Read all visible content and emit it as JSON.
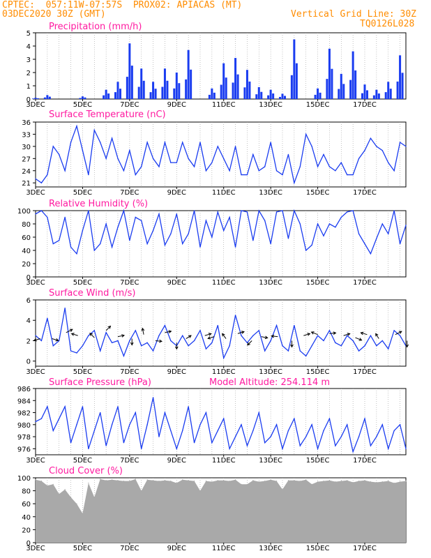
{
  "header": {
    "left_line1": "CPTEC:  057:11W-07:57S  PROX02: APIACAS (MT)",
    "left_line2": "03DEC2020 30Z (GMT)",
    "right_line2": "Vertical Grid Line: 30Z",
    "right_line3": "TQ0126L028"
  },
  "colors": {
    "series": "#1a3cf0",
    "cloud": "#a9a9a9",
    "title": "#ff1aa0",
    "header": "#ff8c00",
    "arrow": "#000000"
  },
  "chart_data": [
    {
      "type": "bar",
      "title": "Precipitation (mm/h)",
      "x_categories": [
        "3DEC",
        "5DEC",
        "7DEC",
        "9DEC",
        "11DEC",
        "13DEC",
        "15DEC",
        "17DEC"
      ],
      "ylim": [
        0,
        5
      ],
      "yticks": [
        0,
        1,
        2,
        3,
        4,
        5
      ],
      "x_days": [
        0,
        0.5,
        1,
        1.5,
        2,
        2.5,
        3,
        3.5,
        4,
        4.5,
        5,
        5.5,
        6,
        6.5,
        7,
        7.5,
        8,
        8.5,
        9,
        9.5,
        10,
        10.5,
        11,
        11.5,
        12,
        12.5,
        13,
        13.5,
        14,
        14.5,
        15,
        15.5
      ],
      "values": [
        0.1,
        0.3,
        0,
        0,
        0.2,
        0,
        0.7,
        1.3,
        4.2,
        2.3,
        1.3,
        2.3,
        2.0,
        3.7,
        0,
        0.8,
        2.7,
        3.1,
        2.2,
        0.9,
        0.7,
        0.4,
        4.5,
        0,
        0.8,
        3.8,
        1.9,
        3.6,
        1.1,
        0.7,
        1.3,
        3.3
      ]
    },
    {
      "type": "line",
      "title": "Surface Temperature (nC)",
      "x_categories": [
        "3DEC",
        "5DEC",
        "7DEC",
        "9DEC",
        "11DEC",
        "13DEC",
        "15DEC",
        "17DEC"
      ],
      "ylim": [
        20,
        36
      ],
      "yticks": [
        21,
        24,
        27,
        30,
        33,
        36
      ],
      "x_days": [
        0,
        0.25,
        0.5,
        0.75,
        1,
        1.25,
        1.5,
        1.75,
        2,
        2.25,
        2.5,
        2.75,
        3,
        3.25,
        3.5,
        3.75,
        4,
        4.25,
        4.5,
        4.75,
        5,
        5.25,
        5.5,
        5.75,
        6,
        6.25,
        6.5,
        6.75,
        7,
        7.25,
        7.5,
        7.75,
        8,
        8.25,
        8.5,
        8.75,
        9,
        9.25,
        9.5,
        9.75,
        10,
        10.25,
        10.5,
        10.75,
        11,
        11.25,
        11.5,
        11.75,
        12,
        12.25,
        12.5,
        12.75,
        13,
        13.25,
        13.5,
        13.75,
        14,
        14.25,
        14.5,
        14.75,
        15,
        15.25,
        15.5,
        15.75
      ],
      "values": [
        22,
        21,
        23,
        30,
        28,
        24,
        31,
        35,
        29,
        23,
        34,
        31,
        27,
        32,
        27,
        24,
        29,
        23,
        25,
        31,
        27,
        25,
        31,
        26,
        26,
        31,
        27,
        25,
        31,
        24,
        26,
        30,
        27,
        24,
        30,
        23,
        23,
        28,
        24,
        25,
        31,
        24,
        23,
        28,
        21,
        25,
        33,
        30,
        25,
        28,
        25,
        24,
        26,
        23,
        23,
        27,
        29,
        32,
        30,
        29,
        26,
        24,
        31,
        30
      ]
    },
    {
      "type": "line",
      "title": "Relative Humidity (%)",
      "x_categories": [
        "3DEC",
        "5DEC",
        "7DEC",
        "9DEC",
        "11DEC",
        "13DEC",
        "15DEC",
        "17DEC"
      ],
      "ylim": [
        0,
        100
      ],
      "yticks": [
        0,
        20,
        40,
        60,
        80,
        100
      ],
      "x_days": [
        0,
        0.25,
        0.5,
        0.75,
        1,
        1.25,
        1.5,
        1.75,
        2,
        2.25,
        2.5,
        2.75,
        3,
        3.25,
        3.5,
        3.75,
        4,
        4.25,
        4.5,
        4.75,
        5,
        5.25,
        5.5,
        5.75,
        6,
        6.25,
        6.5,
        6.75,
        7,
        7.25,
        7.5,
        7.75,
        8,
        8.25,
        8.5,
        8.75,
        9,
        9.25,
        9.5,
        9.75,
        10,
        10.25,
        10.5,
        10.75,
        11,
        11.25,
        11.5,
        11.75,
        12,
        12.25,
        12.5,
        12.75,
        13,
        13.25,
        13.5,
        13.75,
        14,
        14.25,
        14.5,
        14.75,
        15,
        15.25,
        15.5,
        15.75
      ],
      "values": [
        95,
        100,
        90,
        50,
        55,
        90,
        45,
        35,
        70,
        100,
        40,
        50,
        80,
        45,
        75,
        100,
        55,
        90,
        85,
        50,
        70,
        95,
        48,
        65,
        95,
        50,
        65,
        100,
        45,
        85,
        60,
        98,
        70,
        90,
        45,
        100,
        98,
        55,
        100,
        85,
        50,
        98,
        100,
        58,
        100,
        80,
        40,
        48,
        80,
        62,
        80,
        75,
        90,
        98,
        100,
        65,
        50,
        35,
        58,
        80,
        65,
        100,
        50,
        78
      ]
    },
    {
      "type": "line",
      "title": "Surface Wind (m/s)",
      "x_categories": [
        "3DEC",
        "5DEC",
        "7DEC",
        "9DEC",
        "11DEC",
        "13DEC",
        "15DEC",
        "17DEC"
      ],
      "ylim": [
        -0.5,
        6
      ],
      "yticks": [
        0,
        2,
        4,
        6
      ],
      "x_days": [
        0,
        0.25,
        0.5,
        0.75,
        1,
        1.25,
        1.5,
        1.75,
        2,
        2.25,
        2.5,
        2.75,
        3,
        3.25,
        3.5,
        3.75,
        4,
        4.25,
        4.5,
        4.75,
        5,
        5.25,
        5.5,
        5.75,
        6,
        6.25,
        6.5,
        6.75,
        7,
        7.25,
        7.5,
        7.75,
        8,
        8.25,
        8.5,
        8.75,
        9,
        9.25,
        9.5,
        9.75,
        10,
        10.25,
        10.5,
        10.75,
        11,
        11.25,
        11.5,
        11.75,
        12,
        12.25,
        12.5,
        12.75,
        13,
        13.25,
        13.5,
        13.75,
        14,
        14.25,
        14.5,
        14.75,
        15,
        15.25,
        15.5,
        15.75
      ],
      "values": [
        2.5,
        2.0,
        4.2,
        1.5,
        2.0,
        5.2,
        1.0,
        0.8,
        1.5,
        2.5,
        3.0,
        1.0,
        2.8,
        1.8,
        2.0,
        0.5,
        2.0,
        3.0,
        1.5,
        1.8,
        1.0,
        2.5,
        3.5,
        2.0,
        1.5,
        2.5,
        1.5,
        2.0,
        3.0,
        1.2,
        1.8,
        3.5,
        0.3,
        1.5,
        4.5,
        2.5,
        1.8,
        2.5,
        3.0,
        1.0,
        2.0,
        3.5,
        1.5,
        1.0,
        3.5,
        1.0,
        0.5,
        1.5,
        2.5,
        2.0,
        3.0,
        1.8,
        1.5,
        2.5,
        2.0,
        1.0,
        1.5,
        2.5,
        1.5,
        2.0,
        1.2,
        3.0,
        2.5,
        1.5
      ],
      "arrows": [
        {
          "x": 0.2,
          "y": 2.2,
          "u": -1,
          "v": -0.3
        },
        {
          "x": 0.7,
          "y": 2.2,
          "u": 1,
          "v": -0.3
        },
        {
          "x": 1.3,
          "y": 2.8,
          "u": 1,
          "v": 0.5
        },
        {
          "x": 1.8,
          "y": 2.5,
          "u": -1,
          "v": 0.3
        },
        {
          "x": 2.5,
          "y": 2.3,
          "u": -0.7,
          "v": 0.7
        },
        {
          "x": 3.0,
          "y": 3.0,
          "u": 0.7,
          "v": 0.7
        },
        {
          "x": 3.5,
          "y": 2.4,
          "u": 1,
          "v": 0.2
        },
        {
          "x": 4.1,
          "y": 2.2,
          "u": 0,
          "v": -1
        },
        {
          "x": 4.6,
          "y": 2.6,
          "u": -0.2,
          "v": 1
        },
        {
          "x": 5.1,
          "y": 2.0,
          "u": 1,
          "v": -0.1
        },
        {
          "x": 5.5,
          "y": 2.8,
          "u": 1,
          "v": 0.2
        },
        {
          "x": 6.0,
          "y": 1.8,
          "u": 0,
          "v": -1
        },
        {
          "x": 6.4,
          "y": 2.2,
          "u": 0.8,
          "v": 0.5
        },
        {
          "x": 7.2,
          "y": 2.5,
          "u": 1,
          "v": 0.3
        },
        {
          "x": 7.6,
          "y": 2.4,
          "u": -1,
          "v": -0.3
        },
        {
          "x": 8.1,
          "y": 2.2,
          "u": -0.6,
          "v": 0.8
        },
        {
          "x": 8.6,
          "y": 2.7,
          "u": 1,
          "v": 0.3
        },
        {
          "x": 9.2,
          "y": 2.0,
          "u": -0.7,
          "v": -0.7
        },
        {
          "x": 9.6,
          "y": 2.4,
          "u": 1,
          "v": -0.2
        },
        {
          "x": 10.3,
          "y": 2.4,
          "u": -1,
          "v": 0.1
        },
        {
          "x": 10.9,
          "y": 2.0,
          "u": 0,
          "v": -1
        },
        {
          "x": 11.4,
          "y": 2.5,
          "u": 1,
          "v": 0.3
        },
        {
          "x": 12.0,
          "y": 2.6,
          "u": -1,
          "v": 0.4
        },
        {
          "x": 12.5,
          "y": 2.7,
          "u": 1,
          "v": 0.1
        },
        {
          "x": 13.1,
          "y": 2.5,
          "u": 1,
          "v": 0.3
        },
        {
          "x": 13.6,
          "y": 2.3,
          "u": 1,
          "v": -0.4
        },
        {
          "x": 14.1,
          "y": 2.6,
          "u": -1,
          "v": 0.3
        },
        {
          "x": 14.6,
          "y": 2.2,
          "u": -0.5,
          "v": 0.8
        },
        {
          "x": 15.3,
          "y": 2.6,
          "u": 1,
          "v": 0.5
        },
        {
          "x": 15.8,
          "y": 2.0,
          "u": 0,
          "v": -1
        }
      ]
    },
    {
      "type": "line",
      "title": "Surface Pressure (hPa)",
      "annotation": "Model Altitude: 254.114 m",
      "x_categories": [
        "3DEC",
        "5DEC",
        "7DEC",
        "9DEC",
        "11DEC",
        "13DEC",
        "15DEC",
        "17DEC"
      ],
      "ylim": [
        975,
        986
      ],
      "yticks": [
        976,
        978,
        980,
        982,
        984,
        986
      ],
      "x_days": [
        0,
        0.25,
        0.5,
        0.75,
        1,
        1.25,
        1.5,
        1.75,
        2,
        2.25,
        2.5,
        2.75,
        3,
        3.25,
        3.5,
        3.75,
        4,
        4.25,
        4.5,
        4.75,
        5,
        5.25,
        5.5,
        5.75,
        6,
        6.25,
        6.5,
        6.75,
        7,
        7.25,
        7.5,
        7.75,
        8,
        8.25,
        8.5,
        8.75,
        9,
        9.25,
        9.5,
        9.75,
        10,
        10.25,
        10.5,
        10.75,
        11,
        11.25,
        11.5,
        11.75,
        12,
        12.25,
        12.5,
        12.75,
        13,
        13.25,
        13.5,
        13.75,
        14,
        14.25,
        14.5,
        14.75,
        15,
        15.25,
        15.5,
        15.75
      ],
      "values": [
        980.5,
        981,
        983,
        979,
        981,
        983,
        977,
        980,
        983,
        976,
        979,
        982,
        976.5,
        980,
        983,
        977,
        980,
        982,
        976,
        980,
        984.5,
        978,
        982,
        979,
        976,
        979,
        983,
        977,
        980,
        982,
        977,
        979,
        981,
        976,
        978,
        980,
        976.5,
        979,
        982,
        977,
        978,
        980,
        976,
        979,
        981,
        976.5,
        978,
        980,
        976,
        979,
        981,
        976.5,
        978,
        980,
        975.5,
        978,
        981,
        976.5,
        978,
        980,
        976,
        979,
        980,
        976
      ]
    },
    {
      "type": "bar",
      "title": "Cloud Cover (%)",
      "x_categories": [
        "3DEC",
        "5DEC",
        "7DEC",
        "9DEC",
        "11DEC",
        "13DEC",
        "15DEC",
        "17DEC"
      ],
      "ylim": [
        0,
        100
      ],
      "yticks": [
        0,
        20,
        40,
        60,
        80,
        100
      ],
      "x_days": [
        0,
        0.25,
        0.5,
        0.75,
        1,
        1.25,
        1.5,
        1.75,
        2,
        2.25,
        2.5,
        2.75,
        3,
        3.25,
        3.5,
        3.75,
        4,
        4.25,
        4.5,
        4.75,
        5,
        5.25,
        5.5,
        5.75,
        6,
        6.25,
        6.5,
        6.75,
        7,
        7.25,
        7.5,
        7.75,
        8,
        8.25,
        8.5,
        8.75,
        9,
        9.25,
        9.5,
        9.75,
        10,
        10.25,
        10.5,
        10.75,
        11,
        11.25,
        11.5,
        11.75,
        12,
        12.25,
        12.5,
        12.75,
        13,
        13.25,
        13.5,
        13.75,
        14,
        14.25,
        14.5,
        14.75,
        15,
        15.25,
        15.5,
        15.75
      ],
      "values": [
        97,
        95,
        88,
        90,
        75,
        82,
        70,
        60,
        45,
        92,
        70,
        98,
        96,
        97,
        96,
        95,
        95,
        98,
        80,
        97,
        96,
        95,
        96,
        95,
        92,
        97,
        96,
        95,
        80,
        95,
        94,
        96,
        96,
        95,
        97,
        90,
        90,
        96,
        94,
        95,
        97,
        95,
        82,
        96,
        96,
        95,
        97,
        90,
        94,
        95,
        96,
        94,
        95,
        96,
        93,
        95,
        96,
        94,
        93,
        94,
        95,
        92,
        94,
        95
      ]
    }
  ]
}
